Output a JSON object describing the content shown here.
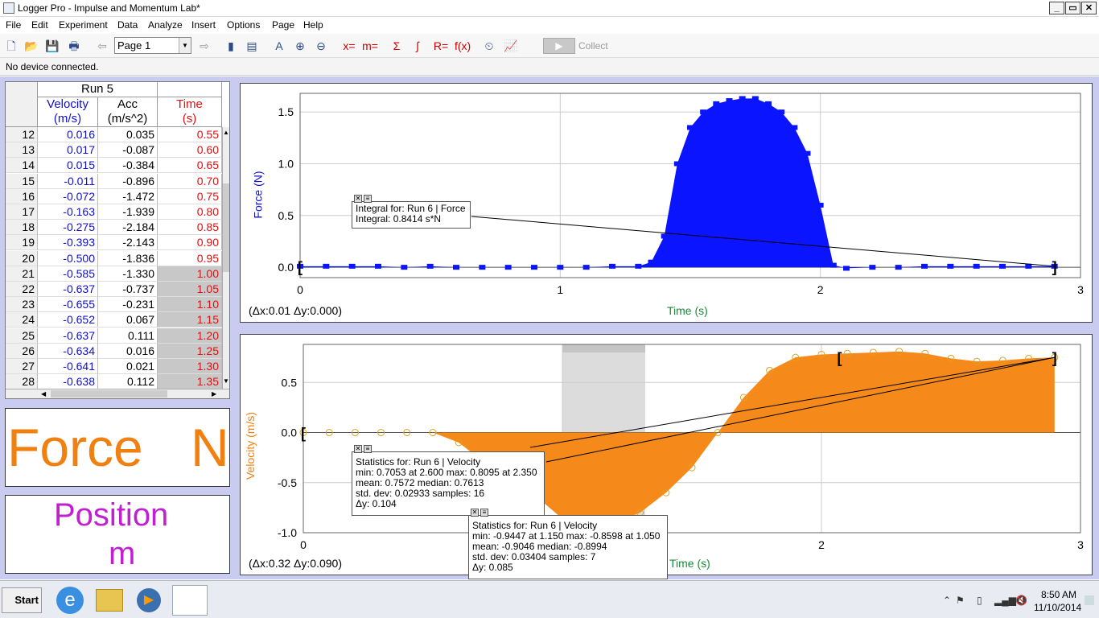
{
  "window": {
    "title": "Logger Pro - Impulse and Momentum Lab*"
  },
  "menu": [
    "File",
    "Edit",
    "Experiment",
    "Data",
    "Analyze",
    "Insert",
    "Options",
    "Page",
    "Help"
  ],
  "toolbar": {
    "page": "Page 1",
    "collect": "Collect"
  },
  "status": "No device connected.",
  "table": {
    "run": "Run 5",
    "columns": [
      {
        "name": "Velocity",
        "unit": "(m/s)",
        "color": "#1010c8"
      },
      {
        "name": "Acc",
        "unit": "(m/s^2)",
        "color": "#000000"
      },
      {
        "name": "Time",
        "unit": "(s)",
        "color": "#e01010"
      }
    ],
    "rows": [
      [
        "12",
        "0.016",
        "0.035",
        "0.55"
      ],
      [
        "13",
        "0.017",
        "-0.087",
        "0.60"
      ],
      [
        "14",
        "0.015",
        "-0.384",
        "0.65"
      ],
      [
        "15",
        "-0.011",
        "-0.896",
        "0.70"
      ],
      [
        "16",
        "-0.072",
        "-1.472",
        "0.75"
      ],
      [
        "17",
        "-0.163",
        "-1.939",
        "0.80"
      ],
      [
        "18",
        "-0.275",
        "-2.184",
        "0.85"
      ],
      [
        "19",
        "-0.393",
        "-2.143",
        "0.90"
      ],
      [
        "20",
        "-0.500",
        "-1.836",
        "0.95"
      ],
      [
        "21",
        "-0.585",
        "-1.330",
        "1.00"
      ],
      [
        "22",
        "-0.637",
        "-0.737",
        "1.05"
      ],
      [
        "23",
        "-0.655",
        "-0.231",
        "1.10"
      ],
      [
        "24",
        "-0.652",
        "0.067",
        "1.15"
      ],
      [
        "25",
        "-0.637",
        "0.111",
        "1.20"
      ],
      [
        "26",
        "-0.634",
        "0.016",
        "1.25"
      ],
      [
        "27",
        "-0.641",
        "0.021",
        "1.30"
      ],
      [
        "28",
        "-0.638",
        "0.112",
        "1.35"
      ]
    ],
    "highlighted_from": "21"
  },
  "meters": {
    "force": {
      "label": "Force",
      "unit": "N",
      "color": "#f08010"
    },
    "position": {
      "label": "Position",
      "unit": "m",
      "color": "#c020d0"
    }
  },
  "graphs": {
    "force": {
      "ylabel": "Force (N)",
      "xlabel": "Time (s)",
      "delta": "(Δx:0.01 Δy:0.000)",
      "yticks": [
        "1.5",
        "1.0",
        "0.5",
        "0.0"
      ],
      "xticks": [
        "0",
        "1",
        "2",
        "3"
      ],
      "integral": {
        "line1": "Integral for: Run 6 | Force",
        "line2": "Integral: 0.8414 s*N"
      }
    },
    "velocity": {
      "ylabel": "Velocity (m/s)",
      "xlabel": "Time (s)",
      "delta": "(Δx:0.32 Δy:0.090)",
      "yticks": [
        "0.5",
        "0.0",
        "-0.5",
        "-1.0"
      ],
      "xticks": [
        "0",
        "2",
        "3"
      ],
      "stats1": {
        "line1": "Statistics for: Run 6 | Velocity",
        "line2": "min: 0.7053 at 2.600 max: 0.8095 at 2.350",
        "line3": "mean: 0.7572 median: 0.7613",
        "line4": "std. dev: 0.02933 samples: 16",
        "line5": "Δy: 0.104"
      },
      "stats2": {
        "line1": "Statistics for: Run 6 | Velocity",
        "line2": "min: -0.9447 at 1.150 max: -0.8598 at 1.050",
        "line3": "mean: -0.9046 median: -0.8994",
        "line4": "std. dev: 0.03404 samples: 7",
        "line5": "Δy: 0.085"
      }
    }
  },
  "chart_data": [
    {
      "type": "area",
      "title": "",
      "xlabel": "Time (s)",
      "ylabel": "Force (N)",
      "xlim": [
        0,
        3
      ],
      "ylim": [
        -0.1,
        1.68
      ],
      "series": [
        {
          "name": "",
          "color": "#0a14ff",
          "x": [
            0,
            0.1,
            0.2,
            0.3,
            0.4,
            0.5,
            0.6,
            0.7,
            0.8,
            0.9,
            1.0,
            1.1,
            1.2,
            1.3,
            1.35,
            1.4,
            1.45,
            1.5,
            1.55,
            1.6,
            1.65,
            1.7,
            1.75,
            1.8,
            1.85,
            1.9,
            1.95,
            2.0,
            2.05,
            2.1,
            2.2,
            2.3,
            2.4,
            2.5,
            2.6,
            2.7,
            2.8,
            2.9
          ],
          "values": [
            0.01,
            0.01,
            0.01,
            0.01,
            0.0,
            0.01,
            0.0,
            0.0,
            0.0,
            0.0,
            0.0,
            0.0,
            0.01,
            0.01,
            0.05,
            0.3,
            1.0,
            1.35,
            1.5,
            1.58,
            1.61,
            1.63,
            1.63,
            1.58,
            1.5,
            1.35,
            1.1,
            0.6,
            0.02,
            -0.01,
            0.0,
            0.0,
            0.01,
            0.01,
            0.01,
            0.01,
            0.01,
            0.01
          ]
        }
      ]
    },
    {
      "type": "area",
      "title": "",
      "xlabel": "Time (s)",
      "ylabel": "Velocity (m/s)",
      "xlim": [
        0,
        3
      ],
      "ylim": [
        -1.0,
        0.88
      ],
      "series": [
        {
          "name": "",
          "color": "#f58a1a",
          "x": [
            0,
            0.1,
            0.2,
            0.3,
            0.4,
            0.5,
            0.6,
            0.7,
            0.8,
            0.9,
            1.0,
            1.05,
            1.1,
            1.15,
            1.2,
            1.3,
            1.4,
            1.5,
            1.6,
            1.7,
            1.8,
            1.9,
            2.0,
            2.1,
            2.2,
            2.3,
            2.4,
            2.5,
            2.6,
            2.7,
            2.8,
            2.9
          ],
          "values": [
            0.0,
            0.0,
            0.0,
            0.0,
            0.0,
            0.0,
            -0.1,
            -0.3,
            -0.5,
            -0.64,
            -0.86,
            -0.9,
            -0.92,
            -0.94,
            -0.9,
            -0.8,
            -0.6,
            -0.35,
            0.0,
            0.35,
            0.62,
            0.75,
            0.78,
            0.79,
            0.8,
            0.81,
            0.79,
            0.74,
            0.71,
            0.72,
            0.74,
            0.75
          ]
        }
      ]
    }
  ],
  "taskbar": {
    "start": "Start",
    "time": "8:50 AM",
    "date": "11/10/2014"
  }
}
